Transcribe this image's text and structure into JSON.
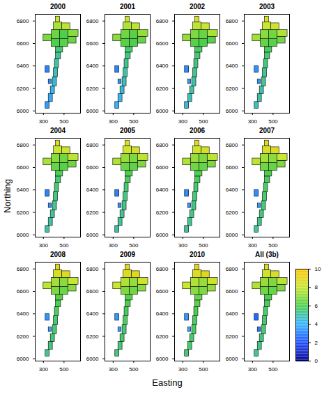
{
  "chart_data": {
    "type": "heatmap",
    "x_label": "Easting",
    "y_label": "Northing",
    "xlim": [
      220,
      660
    ],
    "ylim": [
      5980,
      6860
    ],
    "xticks": [
      300,
      500
    ],
    "yticks": [
      6000,
      6200,
      6400,
      6600,
      6800
    ],
    "cells": [
      [
        320,
        360,
        6020,
        6080
      ],
      [
        350,
        390,
        6080,
        6150
      ],
      [
        370,
        410,
        6150,
        6220
      ],
      [
        390,
        430,
        6220,
        6300
      ],
      [
        400,
        440,
        6300,
        6380
      ],
      [
        410,
        450,
        6380,
        6460
      ],
      [
        420,
        470,
        6460,
        6520
      ],
      [
        420,
        490,
        6520,
        6570
      ],
      [
        380,
        460,
        6570,
        6640
      ],
      [
        460,
        540,
        6570,
        6640
      ],
      [
        540,
        620,
        6600,
        6660
      ],
      [
        300,
        380,
        6620,
        6680
      ],
      [
        380,
        460,
        6640,
        6720
      ],
      [
        460,
        540,
        6640,
        6720
      ],
      [
        540,
        640,
        6660,
        6720
      ],
      [
        400,
        480,
        6720,
        6790
      ],
      [
        480,
        560,
        6720,
        6780
      ],
      [
        420,
        460,
        6790,
        6840
      ],
      [
        320,
        360,
        6340,
        6400
      ],
      [
        350,
        380,
        6240,
        6280
      ]
    ],
    "panels": [
      {
        "title": "2000",
        "values": [
          3.5,
          3.8,
          4.2,
          4.5,
          4.8,
          5.0,
          5.2,
          5.5,
          6.0,
          6.2,
          6.5,
          6.8,
          6.5,
          6.0,
          7.0,
          7.5,
          7.8,
          8.0,
          3.0,
          3.2
        ]
      },
      {
        "title": "2001",
        "values": [
          4.0,
          4.2,
          4.5,
          4.8,
          5.0,
          5.2,
          5.4,
          5.6,
          6.2,
          6.0,
          6.4,
          7.0,
          6.6,
          6.2,
          7.2,
          7.6,
          7.8,
          8.2,
          3.1,
          3.3
        ]
      },
      {
        "title": "2002",
        "values": [
          4.5,
          4.8,
          5.0,
          5.0,
          5.2,
          5.4,
          5.5,
          5.8,
          6.2,
          6.0,
          6.2,
          7.2,
          6.8,
          6.4,
          7.5,
          7.8,
          8.0,
          8.4,
          3.2,
          3.4
        ]
      },
      {
        "title": "2003",
        "values": [
          4.8,
          5.0,
          5.0,
          5.2,
          5.2,
          5.4,
          5.6,
          5.8,
          6.4,
          6.2,
          6.6,
          7.4,
          7.0,
          6.6,
          7.6,
          8.0,
          8.2,
          8.5,
          3.3,
          3.4
        ]
      },
      {
        "title": "2004",
        "values": [
          5.0,
          5.0,
          5.2,
          5.2,
          5.4,
          5.5,
          5.6,
          5.9,
          6.4,
          6.2,
          6.6,
          7.5,
          7.0,
          6.6,
          7.8,
          8.0,
          8.2,
          8.6,
          3.0,
          3.2
        ]
      },
      {
        "title": "2005",
        "values": [
          5.0,
          5.2,
          5.2,
          5.4,
          5.4,
          5.6,
          5.8,
          6.0,
          6.5,
          6.3,
          6.8,
          7.6,
          7.2,
          6.8,
          7.8,
          8.2,
          8.4,
          8.6,
          3.0,
          3.3
        ]
      },
      {
        "title": "2006",
        "values": [
          5.2,
          5.2,
          5.4,
          5.4,
          5.5,
          5.6,
          5.8,
          6.0,
          6.6,
          6.4,
          6.8,
          7.6,
          7.2,
          6.8,
          7.8,
          8.2,
          8.4,
          8.8,
          3.2,
          3.4
        ]
      },
      {
        "title": "2007",
        "values": [
          5.2,
          5.3,
          5.4,
          5.5,
          5.6,
          5.7,
          5.8,
          6.0,
          6.6,
          6.4,
          6.8,
          7.8,
          7.4,
          7.0,
          8.0,
          8.4,
          8.6,
          8.8,
          3.2,
          3.5
        ]
      },
      {
        "title": "2008",
        "values": [
          5.3,
          5.4,
          5.5,
          5.6,
          5.6,
          5.8,
          6.0,
          6.2,
          6.8,
          6.5,
          7.0,
          7.8,
          7.4,
          7.0,
          8.0,
          8.4,
          8.6,
          9.0,
          3.4,
          3.6
        ]
      },
      {
        "title": "2009",
        "values": [
          5.4,
          5.5,
          5.6,
          5.6,
          5.8,
          5.8,
          6.0,
          6.2,
          6.8,
          6.6,
          7.0,
          8.0,
          7.6,
          7.2,
          8.2,
          8.6,
          8.8,
          9.0,
          3.5,
          3.6
        ]
      },
      {
        "title": "2010",
        "values": [
          5.5,
          5.6,
          5.6,
          5.8,
          5.8,
          6.0,
          6.2,
          6.4,
          7.0,
          6.8,
          7.2,
          8.0,
          7.6,
          7.2,
          8.2,
          8.6,
          8.8,
          9.2,
          3.5,
          3.7
        ]
      },
      {
        "title": "All (3b)",
        "values": [
          5.2,
          5.3,
          5.4,
          5.5,
          5.6,
          5.7,
          5.8,
          6.0,
          6.6,
          6.4,
          6.8,
          7.6,
          7.2,
          6.8,
          7.8,
          8.2,
          8.4,
          8.8,
          2.5,
          2.8
        ]
      }
    ],
    "colorbar": {
      "range": [
        0,
        10
      ],
      "ticks": [
        0,
        2,
        4,
        6,
        8,
        10
      ],
      "colors": [
        "#00008b",
        "#1f4fff",
        "#35b4ff",
        "#4ccf4c",
        "#c8e632",
        "#ffc400"
      ]
    }
  }
}
